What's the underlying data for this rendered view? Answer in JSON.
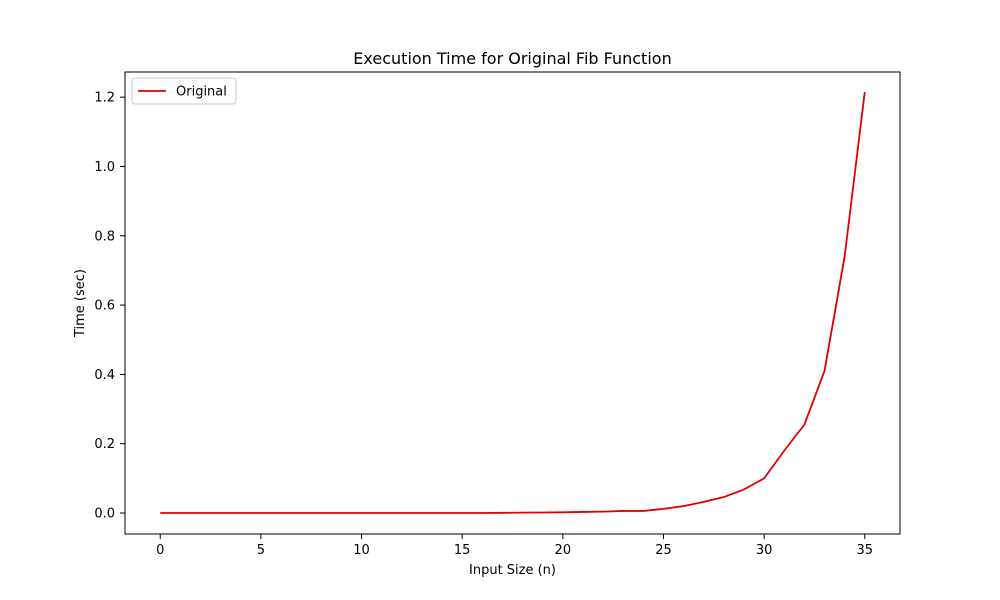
{
  "chart_data": {
    "type": "line",
    "title": "Execution Time for Original Fib Function",
    "xlabel": "Input Size (n)",
    "ylabel": "Time (sec)",
    "xlim": [
      -1.75,
      36.75
    ],
    "ylim": [
      -0.0606,
      1.2726
    ],
    "xticks": [
      0,
      5,
      10,
      15,
      20,
      25,
      30,
      35
    ],
    "xtick_labels": [
      "0",
      "5",
      "10",
      "15",
      "20",
      "25",
      "30",
      "35"
    ],
    "yticks": [
      0.0,
      0.2,
      0.4,
      0.6,
      0.8,
      1.0,
      1.2
    ],
    "ytick_labels": [
      "0.0",
      "0.2",
      "0.4",
      "0.6",
      "0.8",
      "1.0",
      "1.2"
    ],
    "grid": false,
    "legend_position": "upper left",
    "series": [
      {
        "name": "Original",
        "color": "#e00000",
        "x": [
          0,
          1,
          2,
          3,
          4,
          5,
          6,
          7,
          8,
          9,
          10,
          11,
          12,
          13,
          14,
          15,
          16,
          17,
          18,
          19,
          20,
          21,
          22,
          23,
          24,
          25,
          26,
          27,
          28,
          29,
          30,
          31,
          32,
          33,
          34,
          35
        ],
        "y": [
          0.0,
          0.0,
          0.0,
          0.0,
          0.0,
          0.0,
          0.0,
          0.0,
          0.0,
          0.0,
          0.0,
          0.0,
          0.0,
          0.0,
          0.0,
          0.0,
          0.0,
          0.0005,
          0.001,
          0.0015,
          0.002,
          0.003,
          0.004,
          0.006,
          0.006,
          0.012,
          0.02,
          0.032,
          0.046,
          0.068,
          0.1,
          0.18,
          0.255,
          0.41,
          0.74,
          1.215
        ]
      }
    ]
  }
}
